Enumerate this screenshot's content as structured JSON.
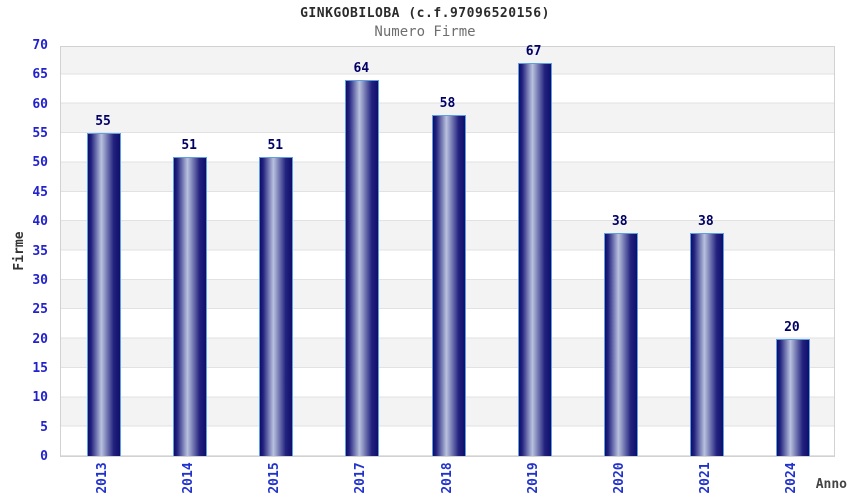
{
  "title": "GINKGOBILOBA (c.f.97096520156)",
  "subtitle": "Numero Firme",
  "chart_data": {
    "type": "bar",
    "title": "GINKGOBILOBA (c.f.97096520156)",
    "subtitle": "Numero Firme",
    "categories": [
      "2013",
      "2014",
      "2015",
      "2017",
      "2018",
      "2019",
      "2020",
      "2021",
      "2024"
    ],
    "values": [
      55,
      51,
      51,
      64,
      58,
      67,
      38,
      38,
      20
    ],
    "xlabel": "Anno",
    "ylabel": "Firme",
    "ylim": [
      0,
      70
    ],
    "ytick_step": 5,
    "yticks": [
      0,
      5,
      10,
      15,
      20,
      25,
      30,
      35,
      40,
      45,
      50,
      55,
      60,
      65,
      70
    ],
    "grid": "horizontal-bands",
    "legend_position": "none"
  },
  "colors": {
    "bar_gradient_dark": "#0f0f6b",
    "bar_gradient_mid": "#23237f",
    "bar_gradient_highlight": "#b9c2de",
    "bar_border": "#5e9fe0",
    "value_label": "#000066",
    "tick_label_blue": "#2222cc",
    "axis_title": "#333333",
    "band_gray": "#f3f3f3",
    "grid_line": "#e2e2e2",
    "plot_border": "#d2d2d2",
    "title_color": "#2b2b2b",
    "subtitle_color": "#6e6e6e",
    "background": "#ffffff"
  }
}
